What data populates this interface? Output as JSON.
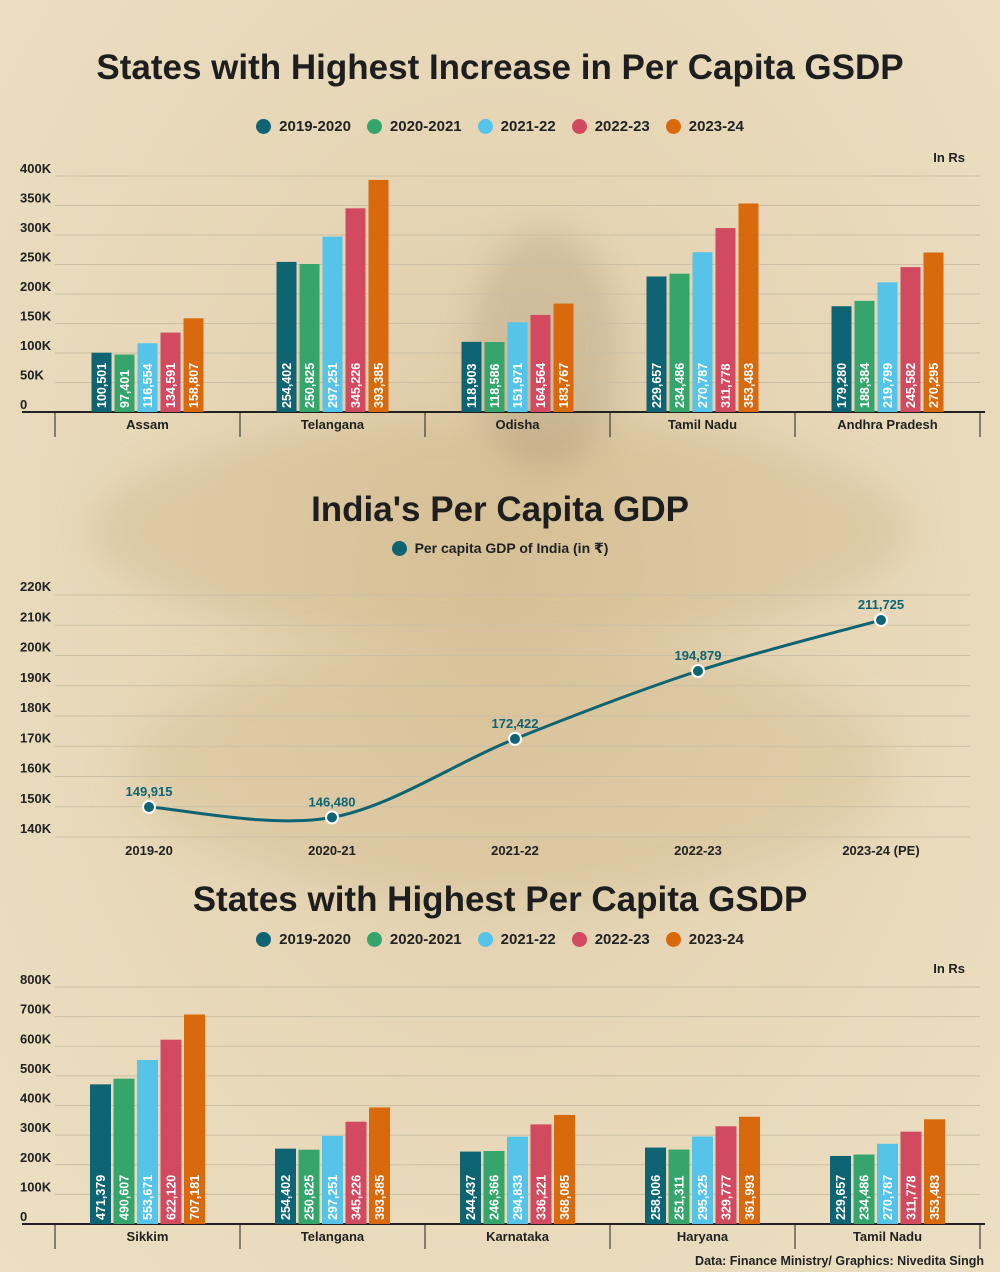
{
  "colors": {
    "background": "#e8dabc",
    "text": "#1e1e1e",
    "grid": "#cbbfa6",
    "axis": "#222222",
    "line": "#0e6472",
    "series": [
      "#0e6472",
      "#35a56c",
      "#56c3e8",
      "#d14a60",
      "#d86a0d"
    ]
  },
  "charts": {
    "increase": {
      "title": "States with Highest Increase in Per Capita GSDP",
      "unit": "In Rs",
      "legend": [
        "2019-2020",
        "2020-2021",
        "2021-22",
        "2022-23",
        "2023-24"
      ]
    },
    "india": {
      "title": "India's Per Capita GDP",
      "legend": [
        "Per capita GDP of India (in ₹)"
      ]
    },
    "highest": {
      "title": "States with Highest Per Capita GSDP",
      "unit": "In Rs",
      "legend": [
        "2019-2020",
        "2020-2021",
        "2021-22",
        "2022-23",
        "2023-24"
      ]
    }
  },
  "chart_data": [
    {
      "type": "bar",
      "title": "States with Highest Increase in Per Capita GSDP",
      "unit": "In Rs",
      "categories": [
        "Assam",
        "Telangana",
        "Odisha",
        "Tamil Nadu",
        "Andhra Pradesh"
      ],
      "series": [
        {
          "name": "2019-2020",
          "values": [
            100501,
            254402,
            118903,
            229657,
            179280
          ]
        },
        {
          "name": "2020-2021",
          "values": [
            97401,
            250825,
            118586,
            234486,
            188384
          ]
        },
        {
          "name": "2021-22",
          "values": [
            116554,
            297251,
            151971,
            270787,
            219799
          ]
        },
        {
          "name": "2022-23",
          "values": [
            134591,
            345226,
            164564,
            311778,
            245582
          ]
        },
        {
          "name": "2023-24",
          "values": [
            158807,
            393385,
            183767,
            353483,
            270295
          ]
        }
      ],
      "ylim": [
        0,
        400000
      ],
      "yticks": [
        "0",
        "50K",
        "100K",
        "150K",
        "200K",
        "250K",
        "300K",
        "350K",
        "400K"
      ],
      "grid": true,
      "legend_position": "top-center"
    },
    {
      "type": "line",
      "title": "India's Per Capita GDP",
      "categories": [
        "2019-20",
        "2020-21",
        "2021-22",
        "2022-23",
        "2023-24 (PE)"
      ],
      "series": [
        {
          "name": "Per capita GDP of India (in ₹)",
          "values": [
            149915,
            146480,
            172422,
            194879,
            211725
          ]
        }
      ],
      "ylim": [
        140000,
        220000
      ],
      "yticks": [
        "140K",
        "150K",
        "160K",
        "170K",
        "180K",
        "190K",
        "200K",
        "210K",
        "220K"
      ],
      "grid": true,
      "legend_position": "top-center"
    },
    {
      "type": "bar",
      "title": "States with Highest Per Capita GSDP",
      "unit": "In Rs",
      "categories": [
        "Sikkim",
        "Telangana",
        "Karnataka",
        "Haryana",
        "Tamil Nadu"
      ],
      "series": [
        {
          "name": "2019-2020",
          "values": [
            471379,
            254402,
            244437,
            258006,
            229657
          ]
        },
        {
          "name": "2020-2021",
          "values": [
            490607,
            250825,
            246366,
            251311,
            234486
          ]
        },
        {
          "name": "2021-22",
          "values": [
            553671,
            297251,
            294833,
            295325,
            270787
          ]
        },
        {
          "name": "2022-23",
          "values": [
            622120,
            345226,
            336221,
            329777,
            311778
          ]
        },
        {
          "name": "2023-24",
          "values": [
            707181,
            393385,
            368085,
            361993,
            353483
          ]
        }
      ],
      "ylim": [
        0,
        800000
      ],
      "yticks": [
        "0",
        "100K",
        "200K",
        "300K",
        "400K",
        "500K",
        "600K",
        "700K",
        "800K"
      ],
      "grid": true,
      "legend_position": "top-center"
    }
  ],
  "source": "Data: Finance Ministry/ Graphics: Nivedita Singh"
}
